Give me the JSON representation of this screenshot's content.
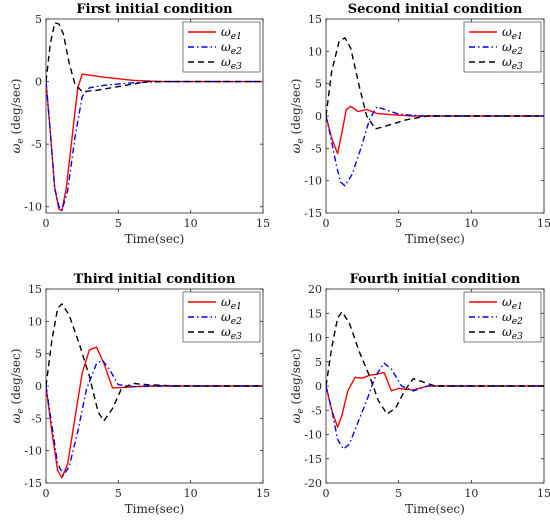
{
  "colors": {
    "e1": "#ff0000",
    "e2": "#0000ff",
    "e3": "#000000"
  },
  "chart_data": [
    {
      "type": "line",
      "title": "First initial condition",
      "xlabel": "Time(sec)",
      "ylabel_main": "ω",
      "ylabel_sub": "e",
      "ylabel_unit": "(deg/sec)",
      "xlim": [
        0,
        15
      ],
      "ylim": [
        -10.5,
        5
      ],
      "xticks": [
        0,
        5,
        10,
        15
      ],
      "yticks": [
        -10,
        -5,
        0,
        5
      ],
      "legend": "top-right",
      "series": [
        {
          "name_main": "ω",
          "name_sub": "e1",
          "style": "solid",
          "points": [
            [
              0,
              0
            ],
            [
              0.3,
              -4
            ],
            [
              0.6,
              -8.5
            ],
            [
              0.9,
              -10.2
            ],
            [
              1.1,
              -10.3
            ],
            [
              1.4,
              -8.5
            ],
            [
              1.8,
              -4.5
            ],
            [
              2.2,
              -0.5
            ],
            [
              2.5,
              0.6
            ],
            [
              4,
              0.35
            ],
            [
              6,
              0.1
            ],
            [
              8,
              0
            ],
            [
              15,
              0
            ]
          ]
        },
        {
          "name_main": "ω",
          "name_sub": "e2",
          "style": "dashdot",
          "points": [
            [
              0,
              0
            ],
            [
              0.3,
              -4
            ],
            [
              0.6,
              -8.5
            ],
            [
              0.9,
              -10
            ],
            [
              1.1,
              -10.3
            ],
            [
              1.5,
              -8.7
            ],
            [
              2,
              -4.5
            ],
            [
              2.5,
              -1.2
            ],
            [
              3,
              -0.5
            ],
            [
              4,
              -0.3
            ],
            [
              6,
              -0.1
            ],
            [
              8,
              0
            ],
            [
              15,
              0
            ]
          ]
        },
        {
          "name_main": "ω",
          "name_sub": "e3",
          "style": "dash",
          "points": [
            [
              0,
              0
            ],
            [
              0.3,
              3
            ],
            [
              0.6,
              4.7
            ],
            [
              0.9,
              4.6
            ],
            [
              1.2,
              3.8
            ],
            [
              1.6,
              1.5
            ],
            [
              2,
              -0.2
            ],
            [
              2.5,
              -0.8
            ],
            [
              3.5,
              -0.7
            ],
            [
              5,
              -0.4
            ],
            [
              7,
              0
            ],
            [
              15,
              0
            ]
          ]
        }
      ]
    },
    {
      "type": "line",
      "title": "Second initial condition",
      "xlabel": "Time(sec)",
      "ylabel_main": "ω",
      "ylabel_sub": "e",
      "ylabel_unit": "(deg/sec)",
      "xlim": [
        0,
        15
      ],
      "ylim": [
        -15,
        15
      ],
      "xticks": [
        0,
        5,
        10,
        15
      ],
      "yticks": [
        -15,
        -10,
        -5,
        0,
        5,
        10,
        15
      ],
      "legend": "top-right",
      "series": [
        {
          "name_main": "ω",
          "name_sub": "e1",
          "style": "solid",
          "points": [
            [
              0,
              0
            ],
            [
              0.4,
              -3.5
            ],
            [
              0.8,
              -5.8
            ],
            [
              1.1,
              -2.5
            ],
            [
              1.4,
              1
            ],
            [
              1.7,
              1.5
            ],
            [
              2.2,
              0.7
            ],
            [
              2.8,
              1
            ],
            [
              3.5,
              0.4
            ],
            [
              4.5,
              0.2
            ],
            [
              6,
              0
            ],
            [
              15,
              0
            ]
          ]
        },
        {
          "name_main": "ω",
          "name_sub": "e2",
          "style": "dashdot",
          "points": [
            [
              0,
              0
            ],
            [
              0.3,
              -3
            ],
            [
              0.7,
              -7.5
            ],
            [
              1,
              -10.2
            ],
            [
              1.3,
              -10.8
            ],
            [
              1.8,
              -9
            ],
            [
              2.4,
              -5
            ],
            [
              3,
              -0.5
            ],
            [
              3.5,
              1.4
            ],
            [
              4.2,
              0.9
            ],
            [
              5,
              0.3
            ],
            [
              6.5,
              0
            ],
            [
              15,
              0
            ]
          ]
        },
        {
          "name_main": "ω",
          "name_sub": "e3",
          "style": "dash",
          "points": [
            [
              0,
              0
            ],
            [
              0.4,
              7
            ],
            [
              0.9,
              11.5
            ],
            [
              1.3,
              12.1
            ],
            [
              1.7,
              10.5
            ],
            [
              2.3,
              4.5
            ],
            [
              2.8,
              0
            ],
            [
              3.4,
              -2
            ],
            [
              4.2,
              -1.5
            ],
            [
              5.5,
              -0.6
            ],
            [
              7,
              0
            ],
            [
              15,
              0
            ]
          ]
        }
      ]
    },
    {
      "type": "line",
      "title": "Third initial condition",
      "xlabel": "Time(sec)",
      "ylabel_main": "ω",
      "ylabel_sub": "e",
      "ylabel_unit": "(deg/sec)",
      "xlim": [
        0,
        15
      ],
      "ylim": [
        -15,
        15
      ],
      "xticks": [
        0,
        5,
        10,
        15
      ],
      "yticks": [
        -15,
        -10,
        -5,
        0,
        5,
        10,
        15
      ],
      "legend": "top-right",
      "series": [
        {
          "name_main": "ω",
          "name_sub": "e1",
          "style": "solid",
          "points": [
            [
              0,
              0
            ],
            [
              0.4,
              -7
            ],
            [
              0.8,
              -13
            ],
            [
              1.1,
              -14.2
            ],
            [
              1.5,
              -12
            ],
            [
              2,
              -5
            ],
            [
              2.5,
              2
            ],
            [
              3,
              5.6
            ],
            [
              3.5,
              6
            ],
            [
              4,
              3.5
            ],
            [
              4.6,
              -0.3
            ],
            [
              5.5,
              -0.2
            ],
            [
              7,
              0
            ],
            [
              15,
              0
            ]
          ]
        },
        {
          "name_main": "ω",
          "name_sub": "e2",
          "style": "dashdot",
          "points": [
            [
              0,
              0
            ],
            [
              0.4,
              -6
            ],
            [
              0.8,
              -12
            ],
            [
              1.2,
              -13.8
            ],
            [
              1.6,
              -12.5
            ],
            [
              2.2,
              -7
            ],
            [
              2.8,
              -0.5
            ],
            [
              3.5,
              3.5
            ],
            [
              3.9,
              4
            ],
            [
              4.4,
              2.5
            ],
            [
              5,
              0.2
            ],
            [
              6,
              -0.1
            ],
            [
              8,
              0
            ],
            [
              15,
              0
            ]
          ]
        },
        {
          "name_main": "ω",
          "name_sub": "e3",
          "style": "dash",
          "points": [
            [
              0,
              0
            ],
            [
              0.4,
              7
            ],
            [
              0.8,
              12
            ],
            [
              1.1,
              12.7
            ],
            [
              1.6,
              11
            ],
            [
              2.3,
              6.5
            ],
            [
              3,
              1.5
            ],
            [
              3.6,
              -4
            ],
            [
              4,
              -5.4
            ],
            [
              4.6,
              -3.5
            ],
            [
              5.2,
              -0.5
            ],
            [
              6,
              0.4
            ],
            [
              7,
              0.2
            ],
            [
              9,
              0
            ],
            [
              15,
              0
            ]
          ]
        }
      ]
    },
    {
      "type": "line",
      "title": "Fourth initial condition",
      "xlabel": "Time(sec)",
      "ylabel_main": "ω",
      "ylabel_sub": "e",
      "ylabel_unit": "(deg/sec)",
      "xlim": [
        0,
        15
      ],
      "ylim": [
        -20,
        20
      ],
      "xticks": [
        0,
        5,
        10,
        15
      ],
      "yticks": [
        -20,
        -15,
        -10,
        -5,
        0,
        5,
        10,
        15,
        20
      ],
      "legend": "top-right",
      "series": [
        {
          "name_main": "ω",
          "name_sub": "e1",
          "style": "solid",
          "points": [
            [
              0,
              0
            ],
            [
              0.4,
              -5
            ],
            [
              0.8,
              -8.5
            ],
            [
              1.1,
              -6
            ],
            [
              1.5,
              -1
            ],
            [
              2,
              1.8
            ],
            [
              2.5,
              1.6
            ],
            [
              3,
              2.2
            ],
            [
              3.6,
              2.5
            ],
            [
              4,
              2.8
            ],
            [
              4.5,
              -1
            ],
            [
              5,
              -0.5
            ],
            [
              6,
              -0.8
            ],
            [
              7,
              0
            ],
            [
              15,
              0
            ]
          ]
        },
        {
          "name_main": "ω",
          "name_sub": "e2",
          "style": "dashdot",
          "points": [
            [
              0,
              0
            ],
            [
              0.4,
              -5
            ],
            [
              0.8,
              -11
            ],
            [
              1.2,
              -13
            ],
            [
              1.6,
              -12
            ],
            [
              2.2,
              -7.5
            ],
            [
              2.8,
              -3
            ],
            [
              3.4,
              2
            ],
            [
              4,
              4.7
            ],
            [
              4.5,
              3.5
            ],
            [
              5.2,
              0
            ],
            [
              6,
              -1
            ],
            [
              7,
              0
            ],
            [
              15,
              0
            ]
          ]
        },
        {
          "name_main": "ω",
          "name_sub": "e3",
          "style": "dash",
          "points": [
            [
              0,
              0
            ],
            [
              0.4,
              8
            ],
            [
              0.8,
              14
            ],
            [
              1.1,
              15.3
            ],
            [
              1.6,
              13
            ],
            [
              2.3,
              7
            ],
            [
              3,
              2
            ],
            [
              3.6,
              -3
            ],
            [
              4.2,
              -5.8
            ],
            [
              4.8,
              -4.5
            ],
            [
              5.4,
              -1
            ],
            [
              6,
              1.5
            ],
            [
              6.5,
              1
            ],
            [
              7.5,
              0
            ],
            [
              15,
              0
            ]
          ]
        }
      ]
    }
  ]
}
